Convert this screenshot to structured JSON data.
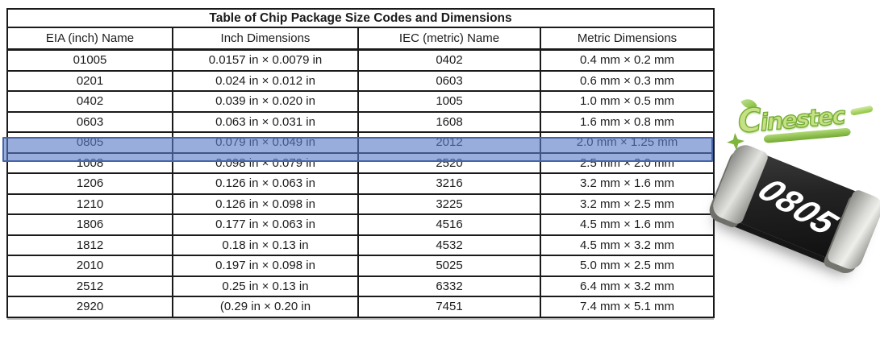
{
  "table": {
    "title": "Table of Chip Package Size Codes and Dimensions",
    "columns": [
      "EIA (inch) Name",
      "Inch Dimensions",
      "IEC (metric) Name",
      "Metric Dimensions"
    ],
    "rows": [
      [
        "01005",
        "0.0157 in × 0.0079 in",
        "0402",
        "0.4 mm × 0.2 mm"
      ],
      [
        "0201",
        "0.024 in × 0.012 in",
        "0603",
        "0.6 mm × 0.3 mm"
      ],
      [
        "0402",
        "0.039 in × 0.020 in",
        "1005",
        "1.0 mm × 0.5 mm"
      ],
      [
        "0603",
        "0.063 in × 0.031 in",
        "1608",
        "1.6 mm × 0.8 mm"
      ],
      [
        "0805",
        "0.079 in × 0.049 in",
        "2012",
        "2.0 mm × 1.25 mm"
      ],
      [
        "1008",
        "0.098 in × 0.079 in",
        "2520",
        "2.5 mm × 2.0 mm"
      ],
      [
        "1206",
        "0.126 in × 0.063 in",
        "3216",
        "3.2 mm × 1.6 mm"
      ],
      [
        "1210",
        "0.126 in × 0.098 in",
        "3225",
        "3.2 mm × 2.5 mm"
      ],
      [
        "1806",
        "0.177 in × 0.063 in",
        "4516",
        "4.5 mm × 1.6 mm"
      ],
      [
        "1812",
        "0.18 in × 0.13 in",
        "4532",
        "4.5 mm × 3.2 mm"
      ],
      [
        "2010",
        "0.197 in × 0.098 in",
        "5025",
        "5.0 mm × 2.5 mm"
      ],
      [
        "2512",
        "0.25 in × 0.13 in",
        "6332",
        "6.4 mm × 3.2 mm"
      ],
      [
        "2920",
        "(0.29 in × 0.20 in",
        "7451",
        "7.4 mm × 5.1 mm"
      ]
    ],
    "highlighted_row_index": 4,
    "highlighted_row_name": "0805"
  },
  "highlight": {
    "fill_rgba": "rgba(89,123,198,0.62)",
    "border": "#4664A8"
  },
  "logo": {
    "text": "Cinestec",
    "color": "#8cc63e"
  },
  "resistor": {
    "label": "0805",
    "body_color": "#1a1a1a",
    "cap_color": "#c7c7c3"
  }
}
